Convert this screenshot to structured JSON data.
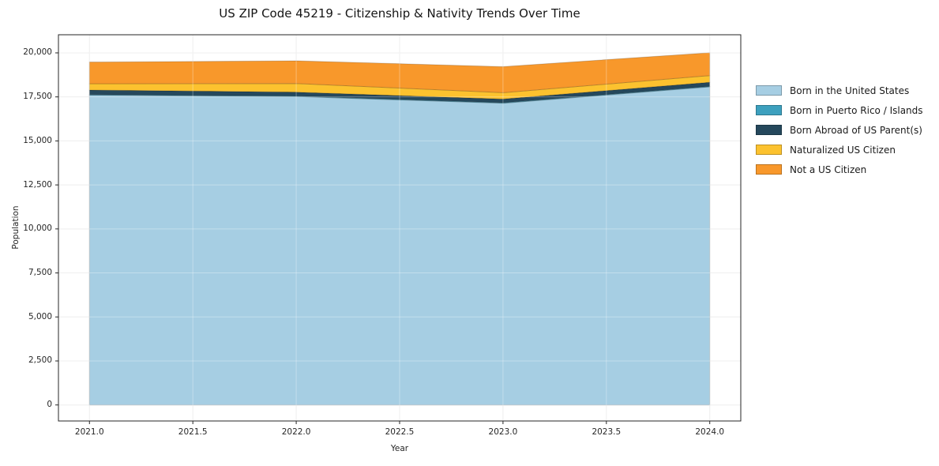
{
  "chart_data": {
    "type": "area",
    "title": "US ZIP Code 45219 - Citizenship & Nativity Trends Over Time",
    "xlabel": "Year",
    "ylabel": "Population",
    "x": [
      2021,
      2022,
      2023,
      2024
    ],
    "series": [
      {
        "name": "Born in the United States",
        "color": "#a6cee3",
        "values": [
          17600,
          17520,
          17140,
          18070
        ]
      },
      {
        "name": "Born in Puerto Rico / Islands",
        "color": "#3da0be",
        "values": [
          30,
          30,
          30,
          30
        ]
      },
      {
        "name": "Born Abroad of US Parent(s)",
        "color": "#25485c",
        "values": [
          260,
          220,
          210,
          230
        ]
      },
      {
        "name": "Naturalized US Citizen",
        "color": "#fcc22f",
        "values": [
          360,
          490,
          360,
          380
        ]
      },
      {
        "name": "Not a US Citizen",
        "color": "#f8982b",
        "values": [
          1230,
          1290,
          1480,
          1300
        ]
      }
    ],
    "stacked": true,
    "xticks": [
      2021.0,
      2021.5,
      2022.0,
      2022.5,
      2023.0,
      2023.5,
      2024.0
    ],
    "yticks": [
      0,
      2500,
      5000,
      7500,
      10000,
      12500,
      15000,
      17500,
      20000
    ],
    "xlim": [
      2020.85,
      2024.15
    ],
    "ylim": [
      -910,
      21030
    ],
    "grid": true,
    "legend_position": "right-outside"
  }
}
